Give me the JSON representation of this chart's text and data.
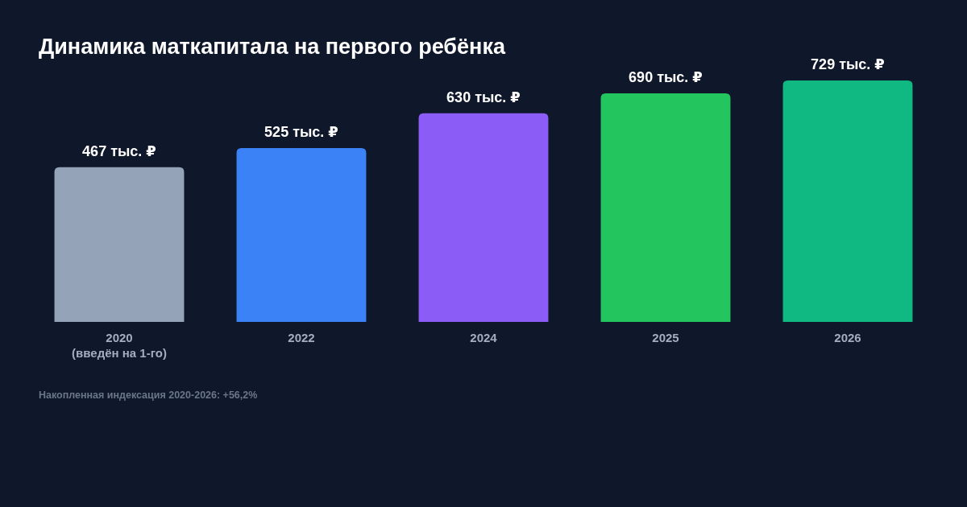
{
  "chart_data": {
    "type": "bar",
    "title": "Динамика маткапитала на первого ребёнка",
    "categories": [
      "2020\n(введён на 1-го)",
      "2022",
      "2024",
      "2025",
      "2026"
    ],
    "values": [
      467,
      525,
      630,
      690,
      729
    ],
    "colors": [
      "#94a3b8",
      "#3b82f6",
      "#8b5cf6",
      "#22c55e",
      "#10b981"
    ],
    "value_labels": [
      "467 тыс. ₽",
      "525 тыс. ₽",
      "630 тыс. ₽",
      "690 тыс. ₽",
      "729 тыс. ₽"
    ],
    "annotations": [
      "Накопленная индексация 2020-2026: +56,2%"
    ]
  }
}
